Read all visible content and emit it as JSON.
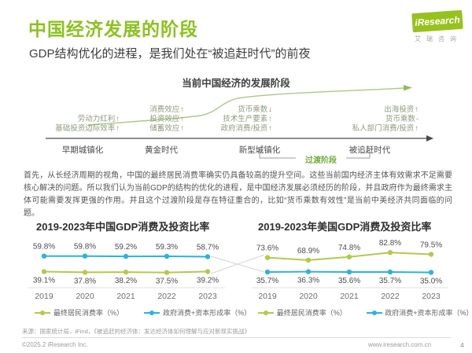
{
  "header": {
    "title": "中国经济发展的阶段",
    "subtitle": "GDP结构优化的进程，是我们处在“被追赶时代”的前夜",
    "logo_text": "iResearch",
    "logo_cn": "艾瑞咨询",
    "brand_color": "#8cc21e"
  },
  "diagram": {
    "title": "当前中国经济的发展阶段",
    "transition_label": "过渡阶段",
    "stages": [
      {
        "name": "早期城镇化",
        "features": [
          {
            "text": "劳动力红利",
            "arrow": "↑"
          },
          {
            "text": "基础投资边际效率",
            "arrow": "↑"
          }
        ]
      },
      {
        "name": "黄金时代",
        "features": [
          {
            "text": "消费效应",
            "arrow": "↑"
          },
          {
            "text": "投资效应",
            "arrow": "↑"
          },
          {
            "text": "储蓄效应",
            "arrow": "↑"
          }
        ]
      },
      {
        "name": "新型城镇化",
        "features": [
          {
            "text": "货币乘数",
            "arrow": "↓",
            "arrow_color": "#d9402e"
          },
          {
            "text": "技术生产要素",
            "arrow": "↑"
          },
          {
            "text": "政府消费/投资",
            "arrow": "↑"
          }
        ]
      },
      {
        "name": "被追赶时代",
        "features": [
          {
            "text": "出海投资",
            "arrow": "↑"
          },
          {
            "text": "货币乘数",
            "arrow": "-"
          },
          {
            "text": "私人部门消费/投资",
            "arrow": "↑"
          }
        ]
      }
    ]
  },
  "body_text": "首先，从长经济周期的视角，中国的最终居民消费率确实仍具备较高的提升空间。这些当前国内经济主体有效需求不足需要核心解决的问题。所以我们认为当前GDP的结构的优化的进程，是中国经济发展必须经历的阶段，并且政府作为最终需求主体可能需要发挥更强的作用。并且这个过渡阶段是存在特征重合的，比如“货币乘数有效性”是当前中美经济共同面临的问题。",
  "chart_data": [
    {
      "type": "line",
      "title": "2019-2023年中国GDP消费及投资比率",
      "categories": [
        "2019",
        "2020",
        "2021",
        "2022",
        "2023"
      ],
      "series": [
        {
          "name": "最终居民消费率（%）",
          "color": "#b0cb4a",
          "values": [
            39.1,
            37.8,
            38.2,
            37.5,
            39.2
          ]
        },
        {
          "name": "政府消费+资本形成率（%）",
          "color": "#2eb3d4",
          "values": [
            59.8,
            59.8,
            59.2,
            59.3,
            58.7
          ]
        }
      ],
      "value_labels": true,
      "grid": false,
      "legend_position": "bottom"
    },
    {
      "type": "line",
      "title": "2019-2023年美国GDP消费及投资比率",
      "categories": [
        "2019",
        "2020",
        "2021",
        "2022",
        "2023"
      ],
      "series": [
        {
          "name": "最终居民消费率（%）",
          "color": "#b0cb4a",
          "values": [
            73.6,
            68.9,
            74.8,
            82.8,
            79.5
          ]
        },
        {
          "name": "政府消费+资本形成率（%）",
          "color": "#2eb3d4",
          "values": [
            35.7,
            36.3,
            35.6,
            35.7,
            35.0
          ]
        }
      ],
      "value_labels": true,
      "grid": false,
      "legend_position": "bottom"
    }
  ],
  "footer": {
    "source": "来源：国家统计局，iFind，《被追赶的经济体：发达经济体如何理解与应对新现实挑战》",
    "copyright": "©2025.2 iResearch Inc.",
    "website": "www.iresearch.com.cn",
    "page": "4"
  }
}
